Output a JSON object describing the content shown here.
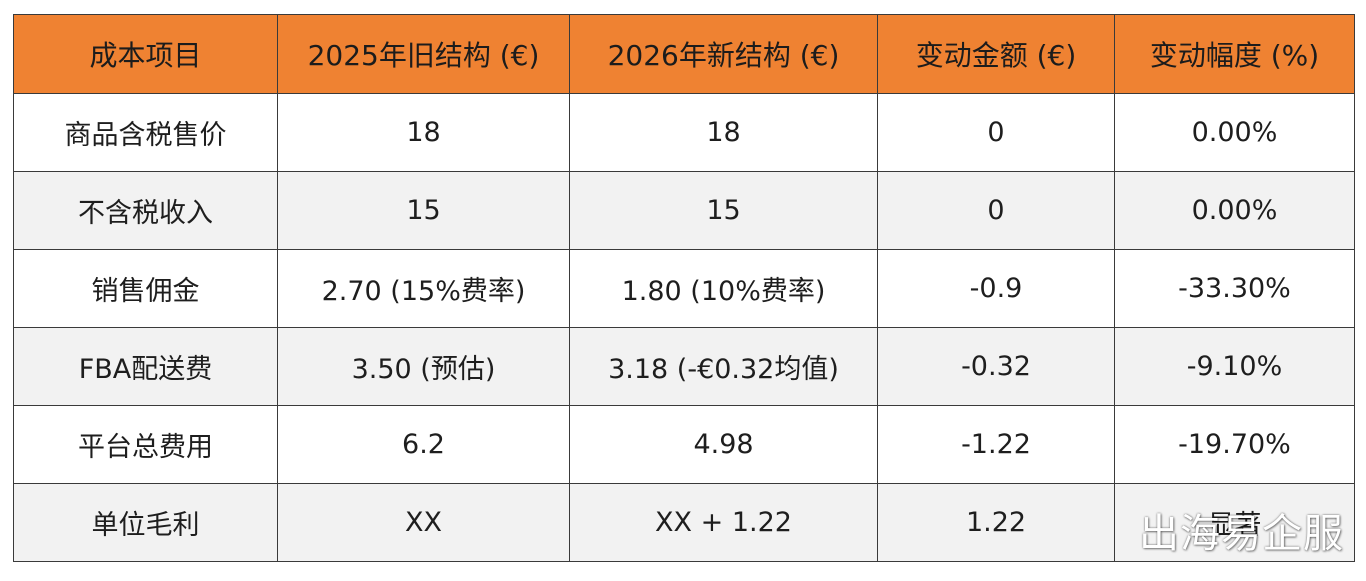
{
  "table": {
    "headers": [
      "成本项目",
      "2025年旧结构 (€)",
      "2026年新结构 (€)",
      "变动金额 (€)",
      "变动幅度 (%)"
    ],
    "rows": [
      [
        "商品含税售价",
        "18",
        "18",
        "0",
        "0.00%"
      ],
      [
        "不含税收入",
        "15",
        "15",
        "0",
        "0.00%"
      ],
      [
        "销售佣金",
        "2.70 (15%费率)",
        "1.80 (10%费率)",
        "-0.9",
        "-33.30%"
      ],
      [
        "FBA配送费",
        "3.50 (预估)",
        "3.18 (-€0.32均值)",
        "-0.32",
        "-9.10%"
      ],
      [
        "平台总费用",
        "6.2",
        "4.98",
        "-1.22",
        "-19.70%"
      ],
      [
        "单位毛利",
        "XX",
        "XX + 1.22",
        "1.22",
        "显著"
      ]
    ]
  },
  "watermark": "出海易企服",
  "colors": {
    "header_bg": "#ef8232",
    "row_alt_bg": "#f2f2f2",
    "border": "#3a3a3a"
  }
}
